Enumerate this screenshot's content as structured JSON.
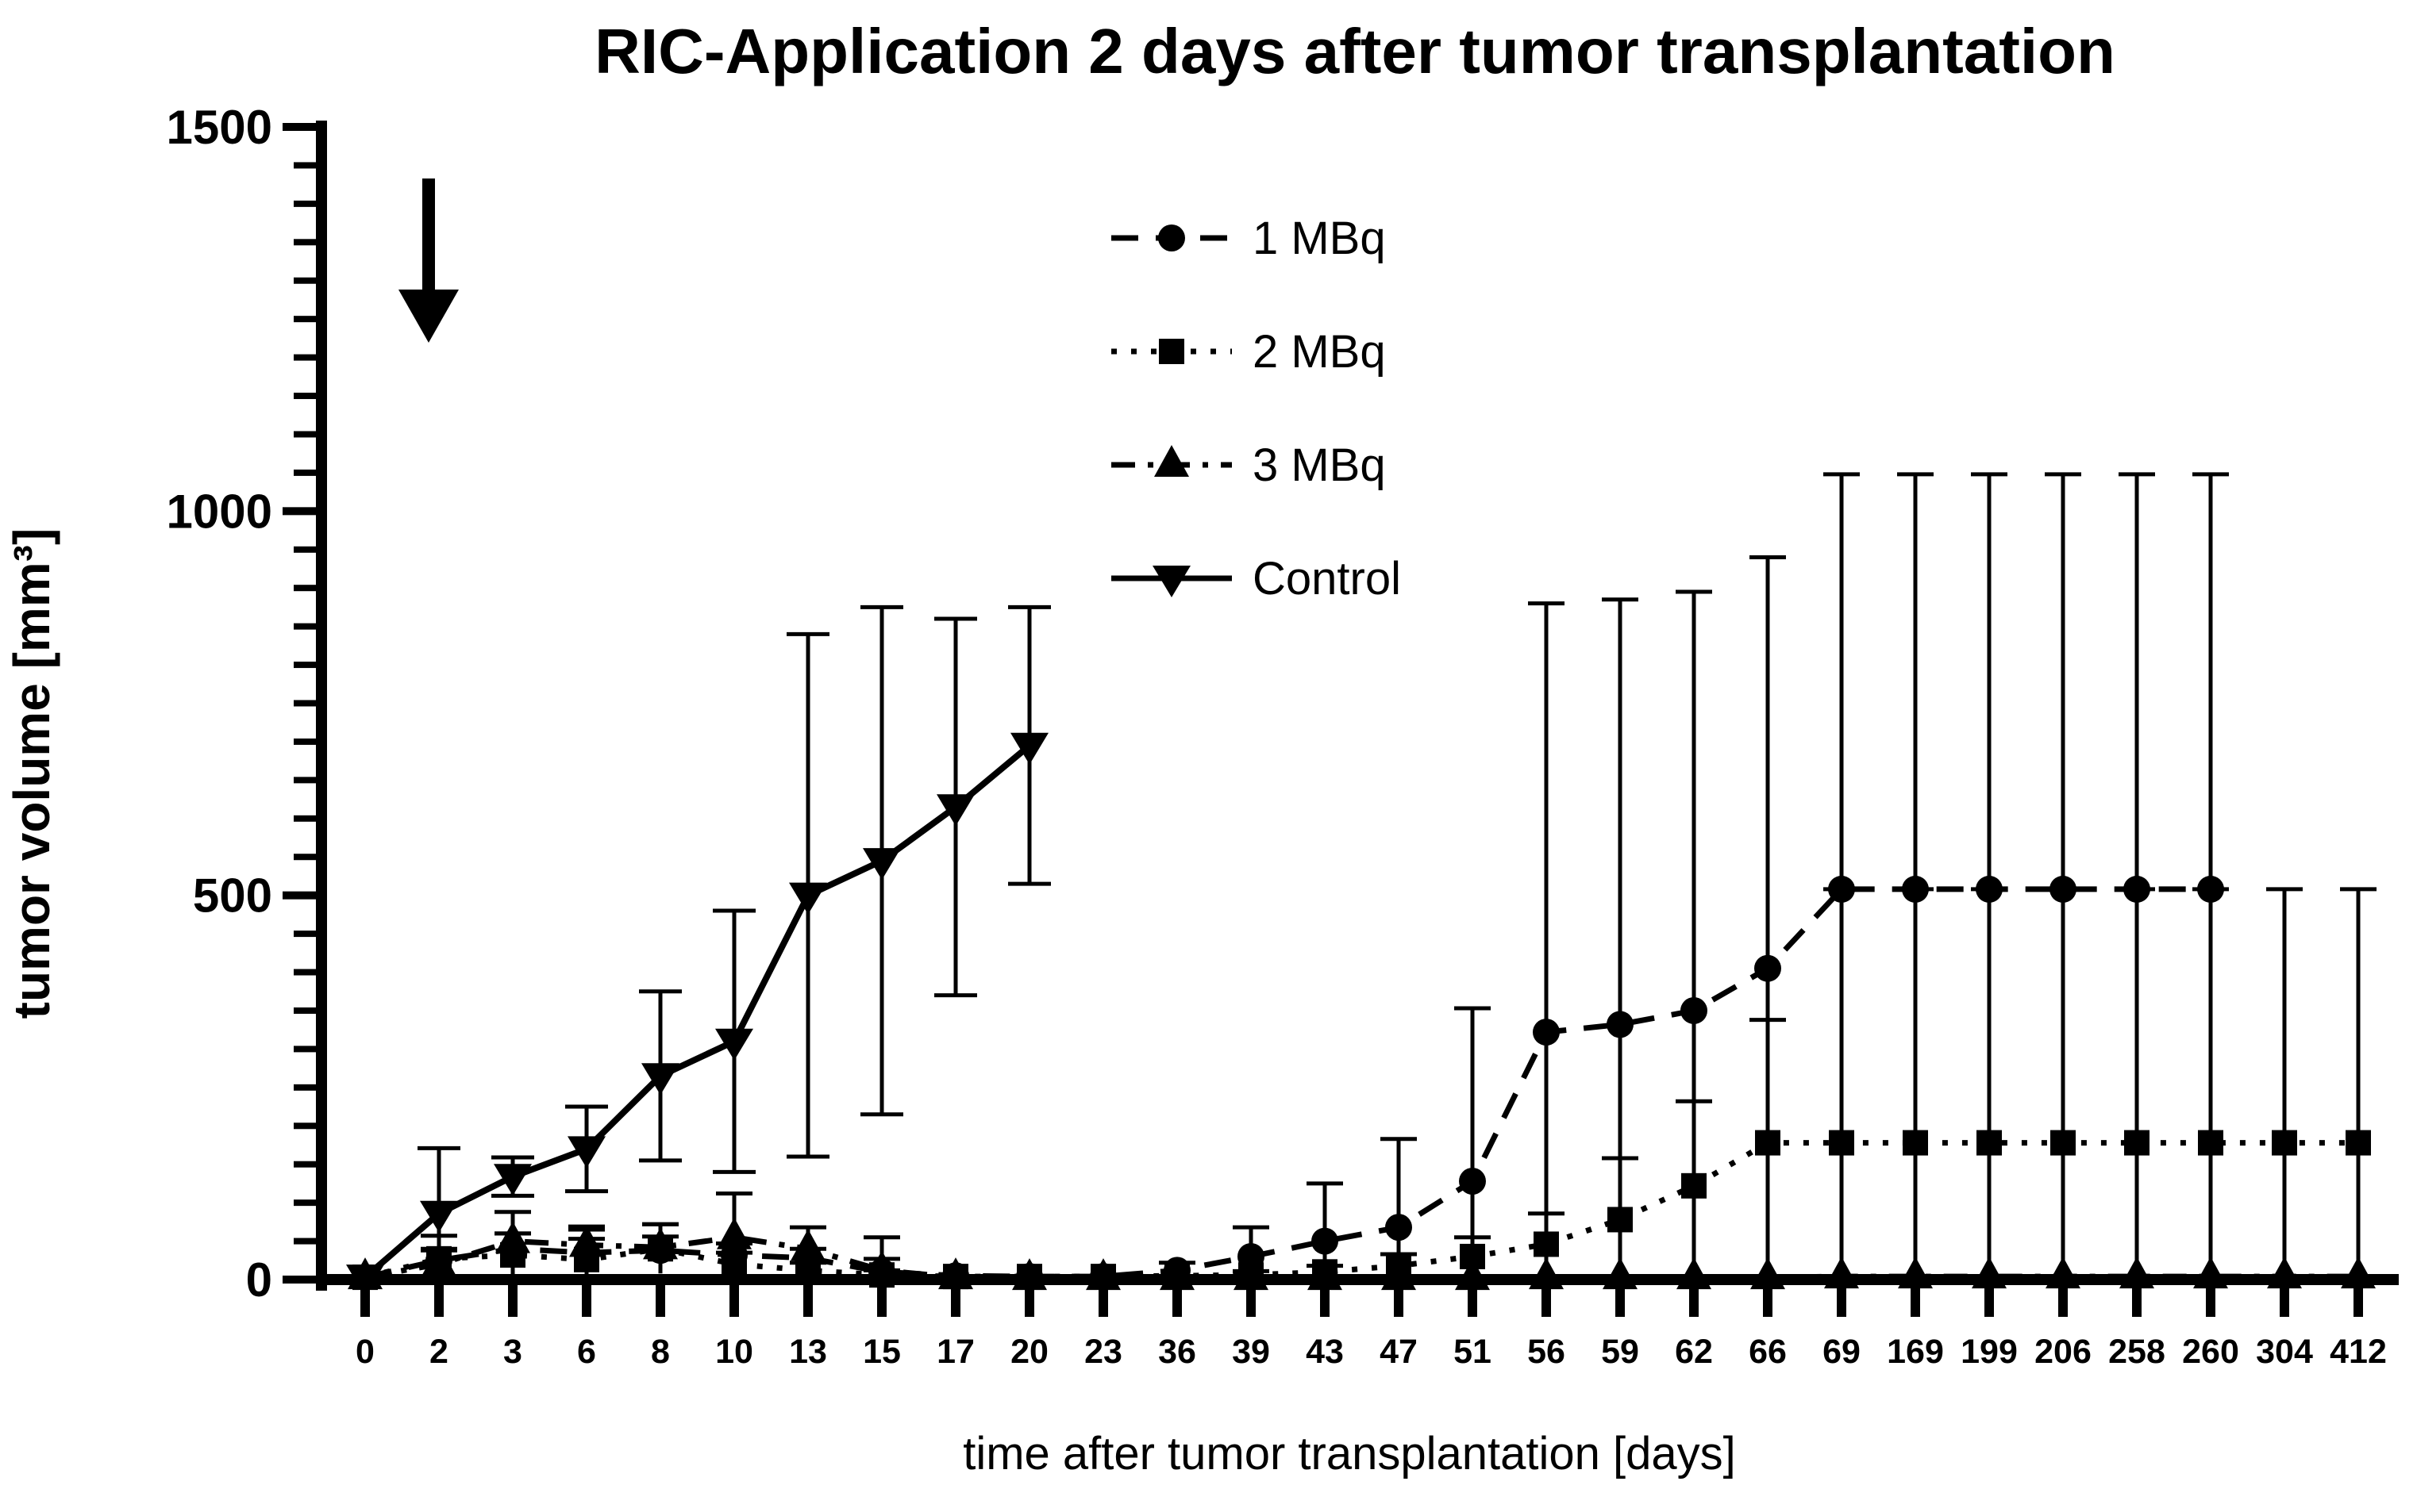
{
  "figure": {
    "title": "RIC-Application 2 days after tumor transplantation"
  },
  "chart_data": {
    "type": "line",
    "title": "RIC-Application 2 days after tumor transplantation",
    "xlabel": "time after tumor transplantation [days]",
    "ylabel": "tumor volume [mm³]",
    "ylim": [
      0,
      1500
    ],
    "y_major_ticks": [
      0,
      500,
      1000,
      1500
    ],
    "y_minor_tick_step": 50,
    "grid": false,
    "legend_position": "inside-top-center",
    "annotation": {
      "arrow": {
        "direction": "down",
        "at_day": "2"
      }
    },
    "x_tick_labels": [
      "0",
      "2",
      "3",
      "6",
      "8",
      "10",
      "13",
      "15",
      "17",
      "20",
      "23",
      "36",
      "39",
      "43",
      "47",
      "51",
      "56",
      "59",
      "62",
      "66",
      "69",
      "169",
      "199",
      "206",
      "258",
      "260",
      "304",
      "412"
    ],
    "series": [
      {
        "name": "1 MBq",
        "marker": "circle",
        "line_style": "dashed",
        "values": [
          3,
          25,
          40,
          35,
          38,
          32,
          28,
          10,
          5,
          4,
          4,
          12,
          30,
          50,
          68,
          128,
          322,
          332,
          350,
          405,
          508,
          508,
          508,
          508,
          508,
          508,
          null,
          null
        ],
        "errors": [
          3,
          15,
          20,
          18,
          18,
          15,
          12,
          45,
          4,
          3,
          3,
          10,
          38,
          75,
          115,
          225,
          558,
          553,
          545,
          535,
          540,
          540,
          540,
          540,
          540,
          540,
          null,
          null
        ]
      },
      {
        "name": "2 MBq",
        "marker": "square",
        "line_style": "dotted",
        "values": [
          3,
          27,
          32,
          26,
          40,
          20,
          12,
          6,
          4,
          4,
          4,
          5,
          6,
          10,
          18,
          30,
          46,
          78,
          122,
          178,
          178,
          178,
          178,
          178,
          178,
          178,
          178,
          178
        ],
        "errors": [
          3,
          30,
          28,
          43,
          32,
          15,
          10,
          6,
          4,
          3,
          3,
          4,
          5,
          8,
          15,
          25,
          40,
          80,
          110,
          160,
          330,
          330,
          330,
          330,
          330,
          330,
          330,
          330
        ]
      },
      {
        "name": "3 MBq",
        "marker": "triangle-up",
        "line_style": "dash-dot",
        "values": [
          3,
          20,
          50,
          45,
          42,
          55,
          40,
          12,
          3,
          2,
          2,
          2,
          2,
          2,
          2,
          2,
          3,
          3,
          3,
          3,
          4,
          4,
          4,
          4,
          4,
          4,
          4,
          4
        ],
        "errors": [
          2,
          18,
          38,
          20,
          30,
          57,
          28,
          15,
          3,
          2,
          2,
          2,
          2,
          2,
          2,
          2,
          2,
          2,
          2,
          2,
          3,
          3,
          3,
          3,
          3,
          3,
          3,
          3
        ]
      },
      {
        "name": "Control",
        "marker": "triangle-down",
        "line_style": "solid",
        "values": [
          3,
          86,
          134,
          170,
          265,
          310,
          500,
          545,
          615,
          695,
          null,
          null,
          null,
          null,
          null,
          null,
          null,
          null,
          null,
          null,
          null,
          null,
          null,
          null,
          null,
          null,
          null,
          null
        ],
        "errors": [
          3,
          85,
          25,
          55,
          110,
          170,
          340,
          330,
          245,
          180,
          null,
          null,
          null,
          null,
          null,
          null,
          null,
          null,
          null,
          null,
          null,
          null,
          null,
          null,
          null,
          null,
          null,
          null
        ]
      }
    ]
  }
}
